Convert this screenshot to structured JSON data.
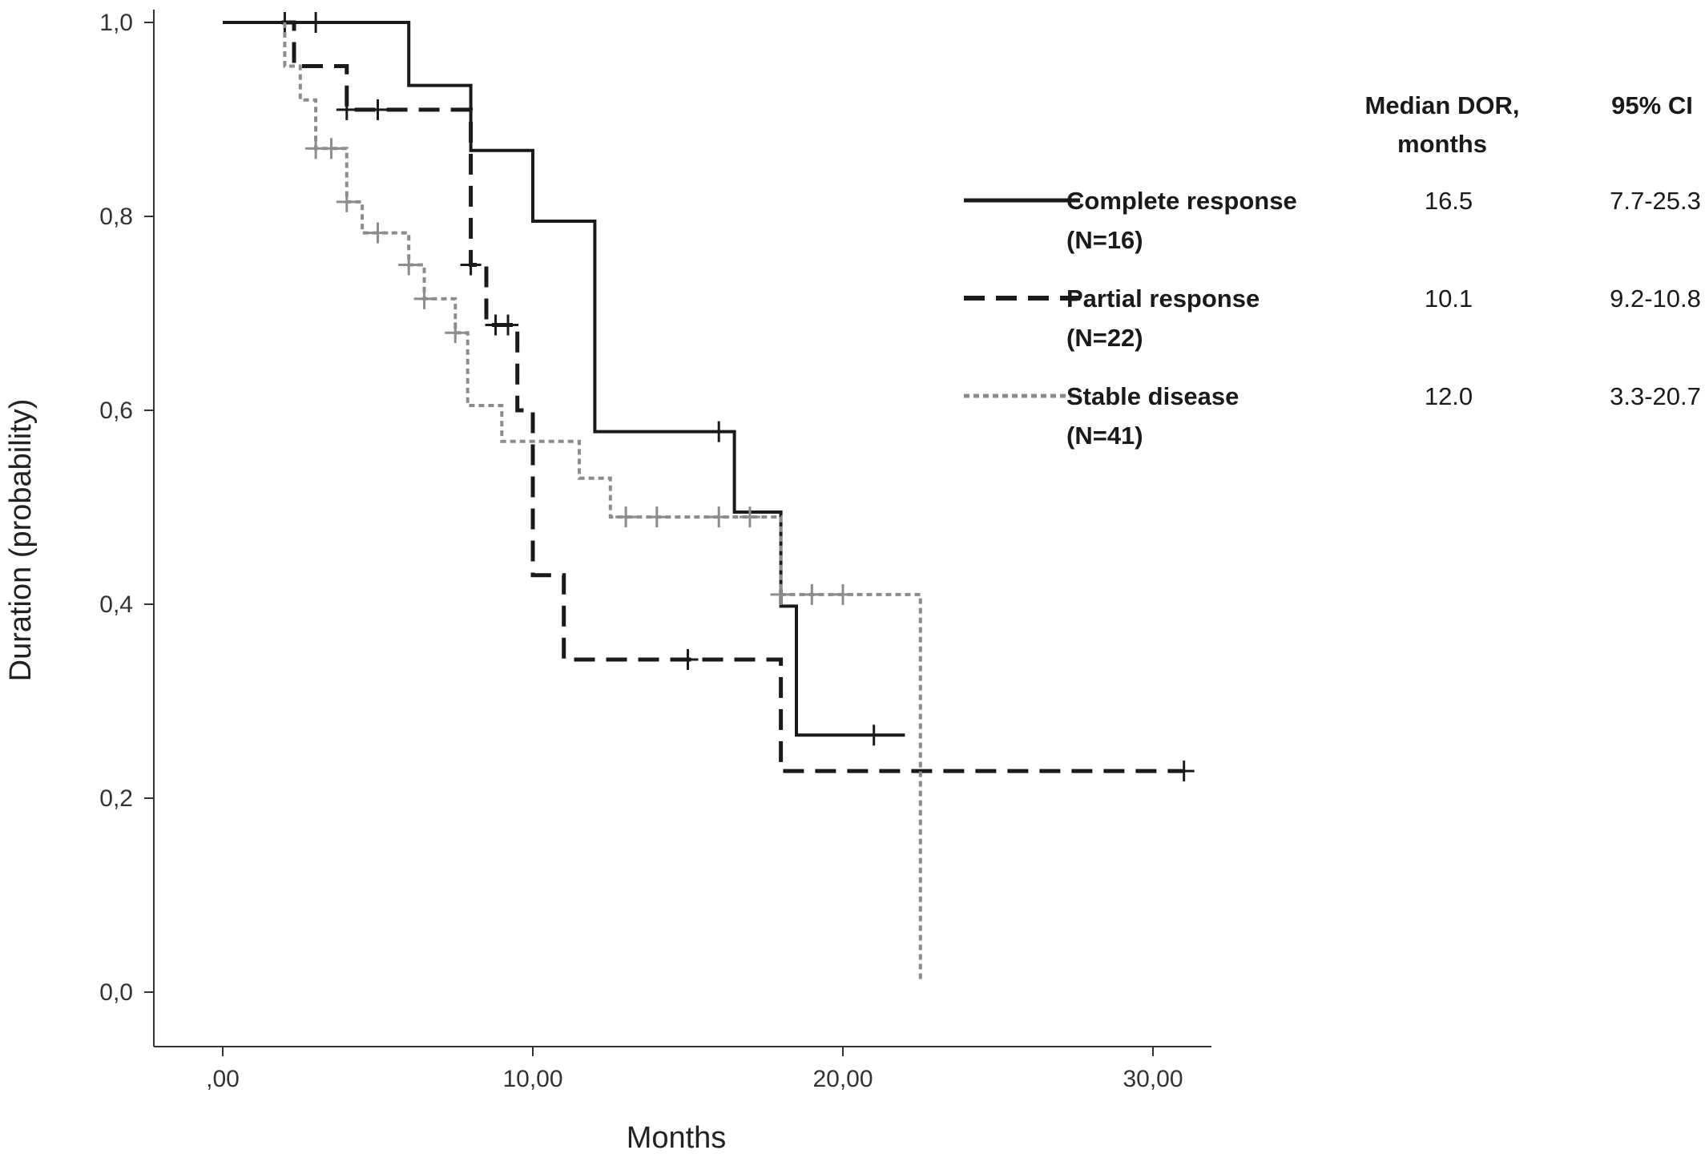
{
  "chart_data": {
    "type": "line",
    "subtype": "kaplan-meier step curves",
    "xlabel": "Months",
    "ylabel": "Duration (probability)",
    "xlim": [
      -2.2,
      32
    ],
    "ylim": [
      -0.06,
      1.02
    ],
    "x_ticks": [
      {
        "value": 0,
        "label": ",00"
      },
      {
        "value": 10,
        "label": "10,00"
      },
      {
        "value": 20,
        "label": "20,00"
      },
      {
        "value": 30,
        "label": "30,00"
      }
    ],
    "y_ticks": [
      {
        "value": 0.0,
        "label": "0,0"
      },
      {
        "value": 0.2,
        "label": "0,2"
      },
      {
        "value": 0.4,
        "label": "0,4"
      },
      {
        "value": 0.6,
        "label": "0,6"
      },
      {
        "value": 0.8,
        "label": "0,8"
      },
      {
        "value": 1.0,
        "label": "1,0"
      }
    ],
    "grid": false,
    "legend_position": "top-right",
    "table_headers": {
      "median": [
        "Median DOR,",
        "months"
      ],
      "ci": "95% CI"
    },
    "series": [
      {
        "name": "Complete response",
        "n_label": "(N=16)",
        "median_dor": "16.5",
        "ci": "7.7-25.3",
        "style": "solid",
        "color": "#1a1a1a",
        "steps": [
          [
            0,
            1.0
          ],
          [
            6,
            1.0
          ],
          [
            6,
            0.935
          ],
          [
            8,
            0.935
          ],
          [
            8,
            0.868
          ],
          [
            10,
            0.868
          ],
          [
            10,
            0.795
          ],
          [
            12,
            0.795
          ],
          [
            12,
            0.578
          ],
          [
            16.5,
            0.578
          ],
          [
            16.5,
            0.495
          ],
          [
            18,
            0.495
          ],
          [
            18,
            0.398
          ],
          [
            18.5,
            0.398
          ],
          [
            18.5,
            0.265
          ],
          [
            22,
            0.265
          ]
        ],
        "censored": [
          [
            2,
            1.0
          ],
          [
            3,
            1.0
          ],
          [
            16,
            0.578
          ],
          [
            21,
            0.265
          ]
        ]
      },
      {
        "name": "Partial response",
        "n_label": "(N=22)",
        "median_dor": "10.1",
        "ci": "9.2-10.8",
        "style": "dashed",
        "color": "#1a1a1a",
        "steps": [
          [
            1.9,
            1.0
          ],
          [
            2.3,
            1.0
          ],
          [
            2.3,
            0.955
          ],
          [
            4,
            0.955
          ],
          [
            4,
            0.91
          ],
          [
            8,
            0.91
          ],
          [
            8,
            0.75
          ],
          [
            8.5,
            0.75
          ],
          [
            8.5,
            0.688
          ],
          [
            9.5,
            0.688
          ],
          [
            9.5,
            0.6
          ],
          [
            10,
            0.6
          ],
          [
            10,
            0.43
          ],
          [
            11,
            0.43
          ],
          [
            11,
            0.343
          ],
          [
            18,
            0.343
          ],
          [
            18,
            0.228
          ],
          [
            31,
            0.228
          ]
        ],
        "censored": [
          [
            4,
            0.91
          ],
          [
            5,
            0.91
          ],
          [
            8,
            0.75
          ],
          [
            8.8,
            0.688
          ],
          [
            9.2,
            0.688
          ],
          [
            15,
            0.343
          ],
          [
            31,
            0.228
          ]
        ]
      },
      {
        "name": "Stable disease",
        "n_label": "(N=41)",
        "median_dor": "12.0",
        "ci": "3.3-20.7",
        "style": "dotted",
        "color": "#8c8c8c",
        "steps": [
          [
            2,
            1.0
          ],
          [
            2,
            0.955
          ],
          [
            2.5,
            0.955
          ],
          [
            2.5,
            0.92
          ],
          [
            3,
            0.92
          ],
          [
            3,
            0.87
          ],
          [
            4,
            0.87
          ],
          [
            4,
            0.815
          ],
          [
            4.5,
            0.815
          ],
          [
            4.5,
            0.783
          ],
          [
            6,
            0.783
          ],
          [
            6,
            0.75
          ],
          [
            6.5,
            0.75
          ],
          [
            6.5,
            0.715
          ],
          [
            7.5,
            0.715
          ],
          [
            7.5,
            0.68
          ],
          [
            7.9,
            0.68
          ],
          [
            7.9,
            0.605
          ],
          [
            9,
            0.605
          ],
          [
            9,
            0.568
          ],
          [
            11.5,
            0.568
          ],
          [
            11.5,
            0.53
          ],
          [
            12.5,
            0.53
          ],
          [
            12.5,
            0.49
          ],
          [
            18,
            0.49
          ],
          [
            18,
            0.41
          ],
          [
            22.5,
            0.41
          ],
          [
            22.5,
            0.012
          ]
        ],
        "censored": [
          [
            3,
            0.87
          ],
          [
            3.5,
            0.87
          ],
          [
            4,
            0.815
          ],
          [
            5,
            0.783
          ],
          [
            6,
            0.75
          ],
          [
            6.5,
            0.715
          ],
          [
            7.5,
            0.68
          ],
          [
            13,
            0.49
          ],
          [
            14,
            0.49
          ],
          [
            16,
            0.49
          ],
          [
            17,
            0.49
          ],
          [
            18,
            0.41
          ],
          [
            19,
            0.41
          ],
          [
            20,
            0.41
          ]
        ]
      }
    ]
  }
}
